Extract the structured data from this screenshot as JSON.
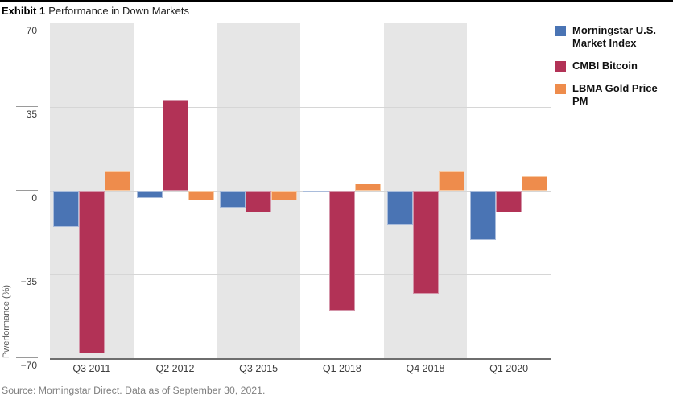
{
  "header": {
    "exhibit_label": "Exhibit 1",
    "title": "Performance in Down Markets"
  },
  "footer": {
    "source": "Source: Morningstar Direct. Data as of September 30, 2021."
  },
  "chart_data": {
    "type": "bar",
    "title": "Performance in Down Markets",
    "categories": [
      "Q3 2011",
      "Q2 2012",
      "Q3 2015",
      "Q1 2018",
      "Q4 2018",
      "Q1 2020"
    ],
    "series": [
      {
        "name": "Morningstar U.S. Market Index",
        "color": "#4a74b4",
        "border_color": "#a9bcdb",
        "values": [
          -15,
          -3,
          -7,
          -0.6,
          -14,
          -20.5
        ]
      },
      {
        "name": "CMBI Bitcoin",
        "color": "#b23256",
        "border_color": "#d495a9",
        "values": [
          -68,
          38,
          -9,
          -50,
          -43,
          -9
        ]
      },
      {
        "name": "LBMA Gold Price PM",
        "color": "#ee8c4c",
        "border_color": "#f7c9a3",
        "values": [
          8,
          -4,
          -4,
          3,
          8,
          6
        ]
      }
    ],
    "xlabel": "",
    "ylabel": "Pwerformance (%)",
    "ylim": [
      -70,
      70
    ],
    "ytick_values": [
      70,
      35,
      0,
      -35,
      -70
    ],
    "ytick_labels": [
      "70",
      "35",
      "0",
      "−35",
      "−70"
    ],
    "grid": "horizontal",
    "legend_position": "right",
    "shaded_category_indexes": [
      0,
      2,
      4
    ],
    "band_color": "#e6e6e6"
  }
}
